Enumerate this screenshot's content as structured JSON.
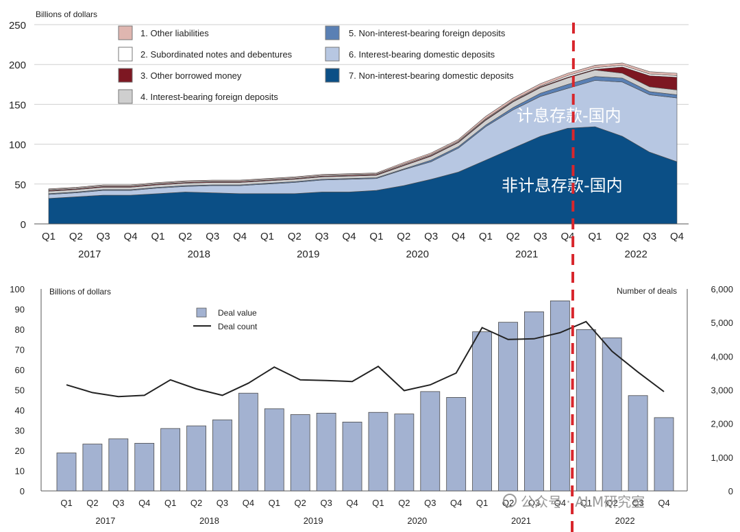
{
  "chart_data": [
    {
      "type": "area",
      "stacked": true,
      "ylabel": "Billions of dollars",
      "ylim": [
        0,
        250
      ],
      "yticks": [
        "0",
        "50",
        "100",
        "150",
        "200",
        "250"
      ],
      "quarters": [
        "Q1",
        "Q2",
        "Q3",
        "Q4",
        "Q1",
        "Q2",
        "Q3",
        "Q4",
        "Q1",
        "Q2",
        "Q3",
        "Q4",
        "Q1",
        "Q2",
        "Q3",
        "Q4",
        "Q1",
        "Q2",
        "Q3",
        "Q4",
        "Q1",
        "Q2",
        "Q3",
        "Q4"
      ],
      "years": [
        "2017",
        "2018",
        "2019",
        "2020",
        "2021",
        "2022"
      ],
      "grid": "horizontal",
      "legend_position": "top-left",
      "series": [
        {
          "key": "s7",
          "name": "7. Non-interest-bearing domestic deposits",
          "color": "#0b4f86",
          "values": [
            32,
            34,
            36,
            36,
            38,
            40,
            39,
            38,
            38,
            38,
            40,
            40,
            42,
            48,
            56,
            65,
            80,
            95,
            110,
            120,
            122,
            110,
            90,
            78
          ]
        },
        {
          "key": "s6",
          "name": "6. Interest-bearing domestic deposits",
          "color": "#b7c7e2",
          "values": [
            5,
            5,
            6,
            6,
            7,
            7,
            9,
            10,
            12,
            14,
            15,
            16,
            15,
            20,
            22,
            30,
            42,
            48,
            50,
            50,
            58,
            68,
            72,
            80
          ]
        },
        {
          "key": "s5",
          "name": "5. Non-interest-bearing foreign deposits",
          "color": "#5a80b4",
          "values": [
            1,
            1,
            1,
            1,
            1,
            1,
            1,
            1,
            1,
            1,
            1,
            1,
            1,
            1,
            2,
            2,
            2,
            3,
            4,
            5,
            5,
            5,
            4,
            4
          ]
        },
        {
          "key": "s4",
          "name": "4. Interest-bearing foreign deposits",
          "color": "#cfcfcf",
          "values": [
            3,
            3,
            3,
            3,
            3,
            3,
            3,
            3,
            3,
            3,
            3,
            3,
            3,
            4,
            5,
            5,
            6,
            7,
            7,
            8,
            8,
            6,
            6,
            6
          ]
        },
        {
          "key": "s3",
          "name": "3. Other borrowed money",
          "color": "#7d1722",
          "values": [
            1,
            1,
            1,
            1,
            1,
            1,
            1,
            1,
            1,
            1,
            1,
            1,
            1,
            1,
            1,
            1,
            1,
            1,
            1,
            1,
            1,
            8,
            14,
            16
          ]
        },
        {
          "key": "s2",
          "name": "2. Subordinated notes and debentures",
          "color": "#ffffff",
          "values": [
            1,
            1,
            1,
            1,
            1,
            1,
            1,
            1,
            1,
            1,
            1,
            1,
            1,
            1,
            1,
            1,
            1,
            1,
            1,
            2,
            2,
            2,
            2,
            2
          ]
        },
        {
          "key": "s1",
          "name": "1. Other liabilities",
          "color": "#dfb6b0",
          "values": [
            1,
            1,
            1,
            1,
            1,
            1,
            1,
            1,
            1,
            1,
            1,
            1,
            1,
            2,
            2,
            2,
            3,
            3,
            3,
            3,
            3,
            3,
            3,
            3
          ]
        }
      ],
      "annotations": [
        {
          "text": "计息存款-国内",
          "color": "#ffffff"
        },
        {
          "text": "非计息存款-国内",
          "color": "#ffffff"
        }
      ]
    },
    {
      "type": "bar+line",
      "ylabel_left": "Billions of dollars",
      "ylabel_right": "Number of deals",
      "ylim_left": [
        0,
        100
      ],
      "ylim_right": [
        0,
        6000
      ],
      "yticks_left": [
        "0",
        "10",
        "20",
        "30",
        "40",
        "50",
        "60",
        "70",
        "80",
        "90",
        "100"
      ],
      "yticks_right": [
        "0",
        "1,000",
        "2,000",
        "3,000",
        "4,000",
        "5,000",
        "6,000"
      ],
      "quarters": [
        "Q1",
        "Q2",
        "Q3",
        "Q4",
        "Q1",
        "Q2",
        "Q3",
        "Q4",
        "Q1",
        "Q2",
        "Q3",
        "Q4",
        "Q1",
        "Q2",
        "Q3",
        "Q4",
        "Q1",
        "Q2",
        "Q3",
        "Q4",
        "Q1",
        "Q2",
        "Q3",
        "Q4"
      ],
      "years": [
        "2017",
        "2018",
        "2019",
        "2020",
        "2021",
        "2022"
      ],
      "legend_position": "top-left",
      "series": [
        {
          "key": "deal_value",
          "name": "Deal value",
          "kind": "bar",
          "color": "#a3b2d1",
          "values": [
            18.8,
            23.2,
            25.8,
            23.6,
            30.9,
            32.2,
            35.2,
            48.4,
            40.7,
            37.8,
            38.5,
            34.1,
            38.9,
            38.1,
            49.2,
            46.3,
            78.8,
            83.5,
            88.7,
            94.1,
            79.9,
            75.8,
            47.2,
            36.3
          ]
        },
        {
          "key": "deal_count",
          "name": "Deal count",
          "kind": "line",
          "color": "#222222",
          "values": [
            3150,
            2920,
            2800,
            2840,
            3300,
            3030,
            2840,
            3200,
            3680,
            3300,
            3280,
            3250,
            3700,
            2980,
            3150,
            3500,
            4850,
            4500,
            4520,
            4700,
            5030,
            4150,
            3530,
            2950
          ]
        }
      ]
    }
  ],
  "divider": {
    "color": "#d8262c",
    "style": "dashed"
  },
  "watermark": "公众号 · ALM研究室"
}
